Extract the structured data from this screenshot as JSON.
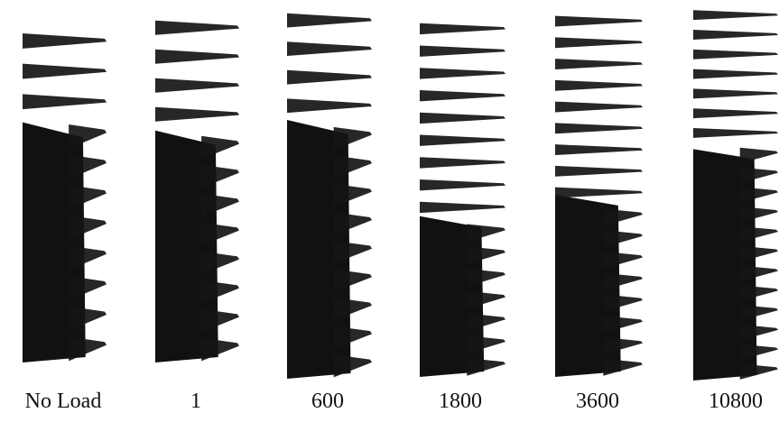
{
  "panels": [
    {
      "label": "No  Load"
    },
    {
      "label": "1"
    },
    {
      "label": "600"
    },
    {
      "label": "1800"
    },
    {
      "label": "3600"
    },
    {
      "label": "10800"
    }
  ]
}
